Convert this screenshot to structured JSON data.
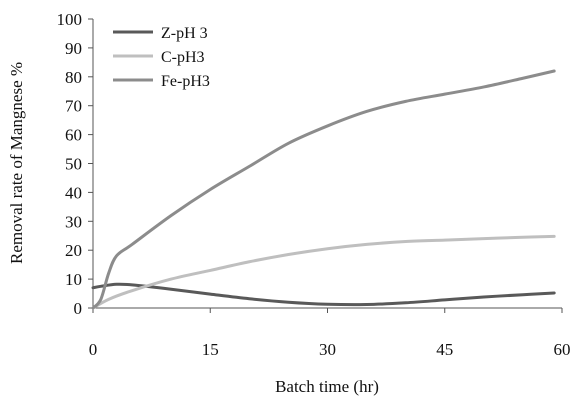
{
  "chart_data": {
    "type": "line",
    "xlabel": "Batch time (hr)",
    "ylabel": "Removal rate of Mangnese %",
    "xlim": [
      0,
      60
    ],
    "ylim": [
      0,
      100
    ],
    "x_ticks": [
      "0",
      "15",
      "30",
      "45",
      "60"
    ],
    "y_ticks": [
      "0",
      "10",
      "20",
      "30",
      "40",
      "50",
      "60",
      "70",
      "80",
      "90",
      "100"
    ],
    "grid": false,
    "legend_position": "top-left",
    "series": [
      {
        "name": "Z-pH 3",
        "color": "#595959",
        "points": [
          [
            0,
            7
          ],
          [
            1,
            7.5
          ],
          [
            3,
            8.2
          ],
          [
            5,
            8
          ],
          [
            10,
            6.5
          ],
          [
            15,
            4.8
          ],
          [
            20,
            3.2
          ],
          [
            25,
            2
          ],
          [
            30,
            1.3
          ],
          [
            35,
            1.2
          ],
          [
            40,
            1.8
          ],
          [
            45,
            2.8
          ],
          [
            50,
            3.8
          ],
          [
            55,
            4.6
          ],
          [
            59,
            5.2
          ]
        ]
      },
      {
        "name": "C-pH3",
        "color": "#bfbfbf",
        "points": [
          [
            0,
            0
          ],
          [
            2,
            3
          ],
          [
            5,
            6
          ],
          [
            10,
            10
          ],
          [
            15,
            13
          ],
          [
            20,
            16
          ],
          [
            25,
            18.5
          ],
          [
            30,
            20.5
          ],
          [
            35,
            22
          ],
          [
            40,
            23
          ],
          [
            45,
            23.5
          ],
          [
            50,
            24
          ],
          [
            55,
            24.5
          ],
          [
            59,
            24.8
          ]
        ]
      },
      {
        "name": "Fe-pH3",
        "color": "#8c8c8c",
        "points": [
          [
            0,
            0
          ],
          [
            1,
            3
          ],
          [
            2,
            12
          ],
          [
            3,
            18
          ],
          [
            5,
            22
          ],
          [
            10,
            32
          ],
          [
            15,
            41
          ],
          [
            20,
            49
          ],
          [
            25,
            57
          ],
          [
            30,
            63
          ],
          [
            35,
            68
          ],
          [
            40,
            71.5
          ],
          [
            45,
            74
          ],
          [
            50,
            76.5
          ],
          [
            55,
            79.5
          ],
          [
            59,
            82
          ]
        ]
      }
    ]
  }
}
